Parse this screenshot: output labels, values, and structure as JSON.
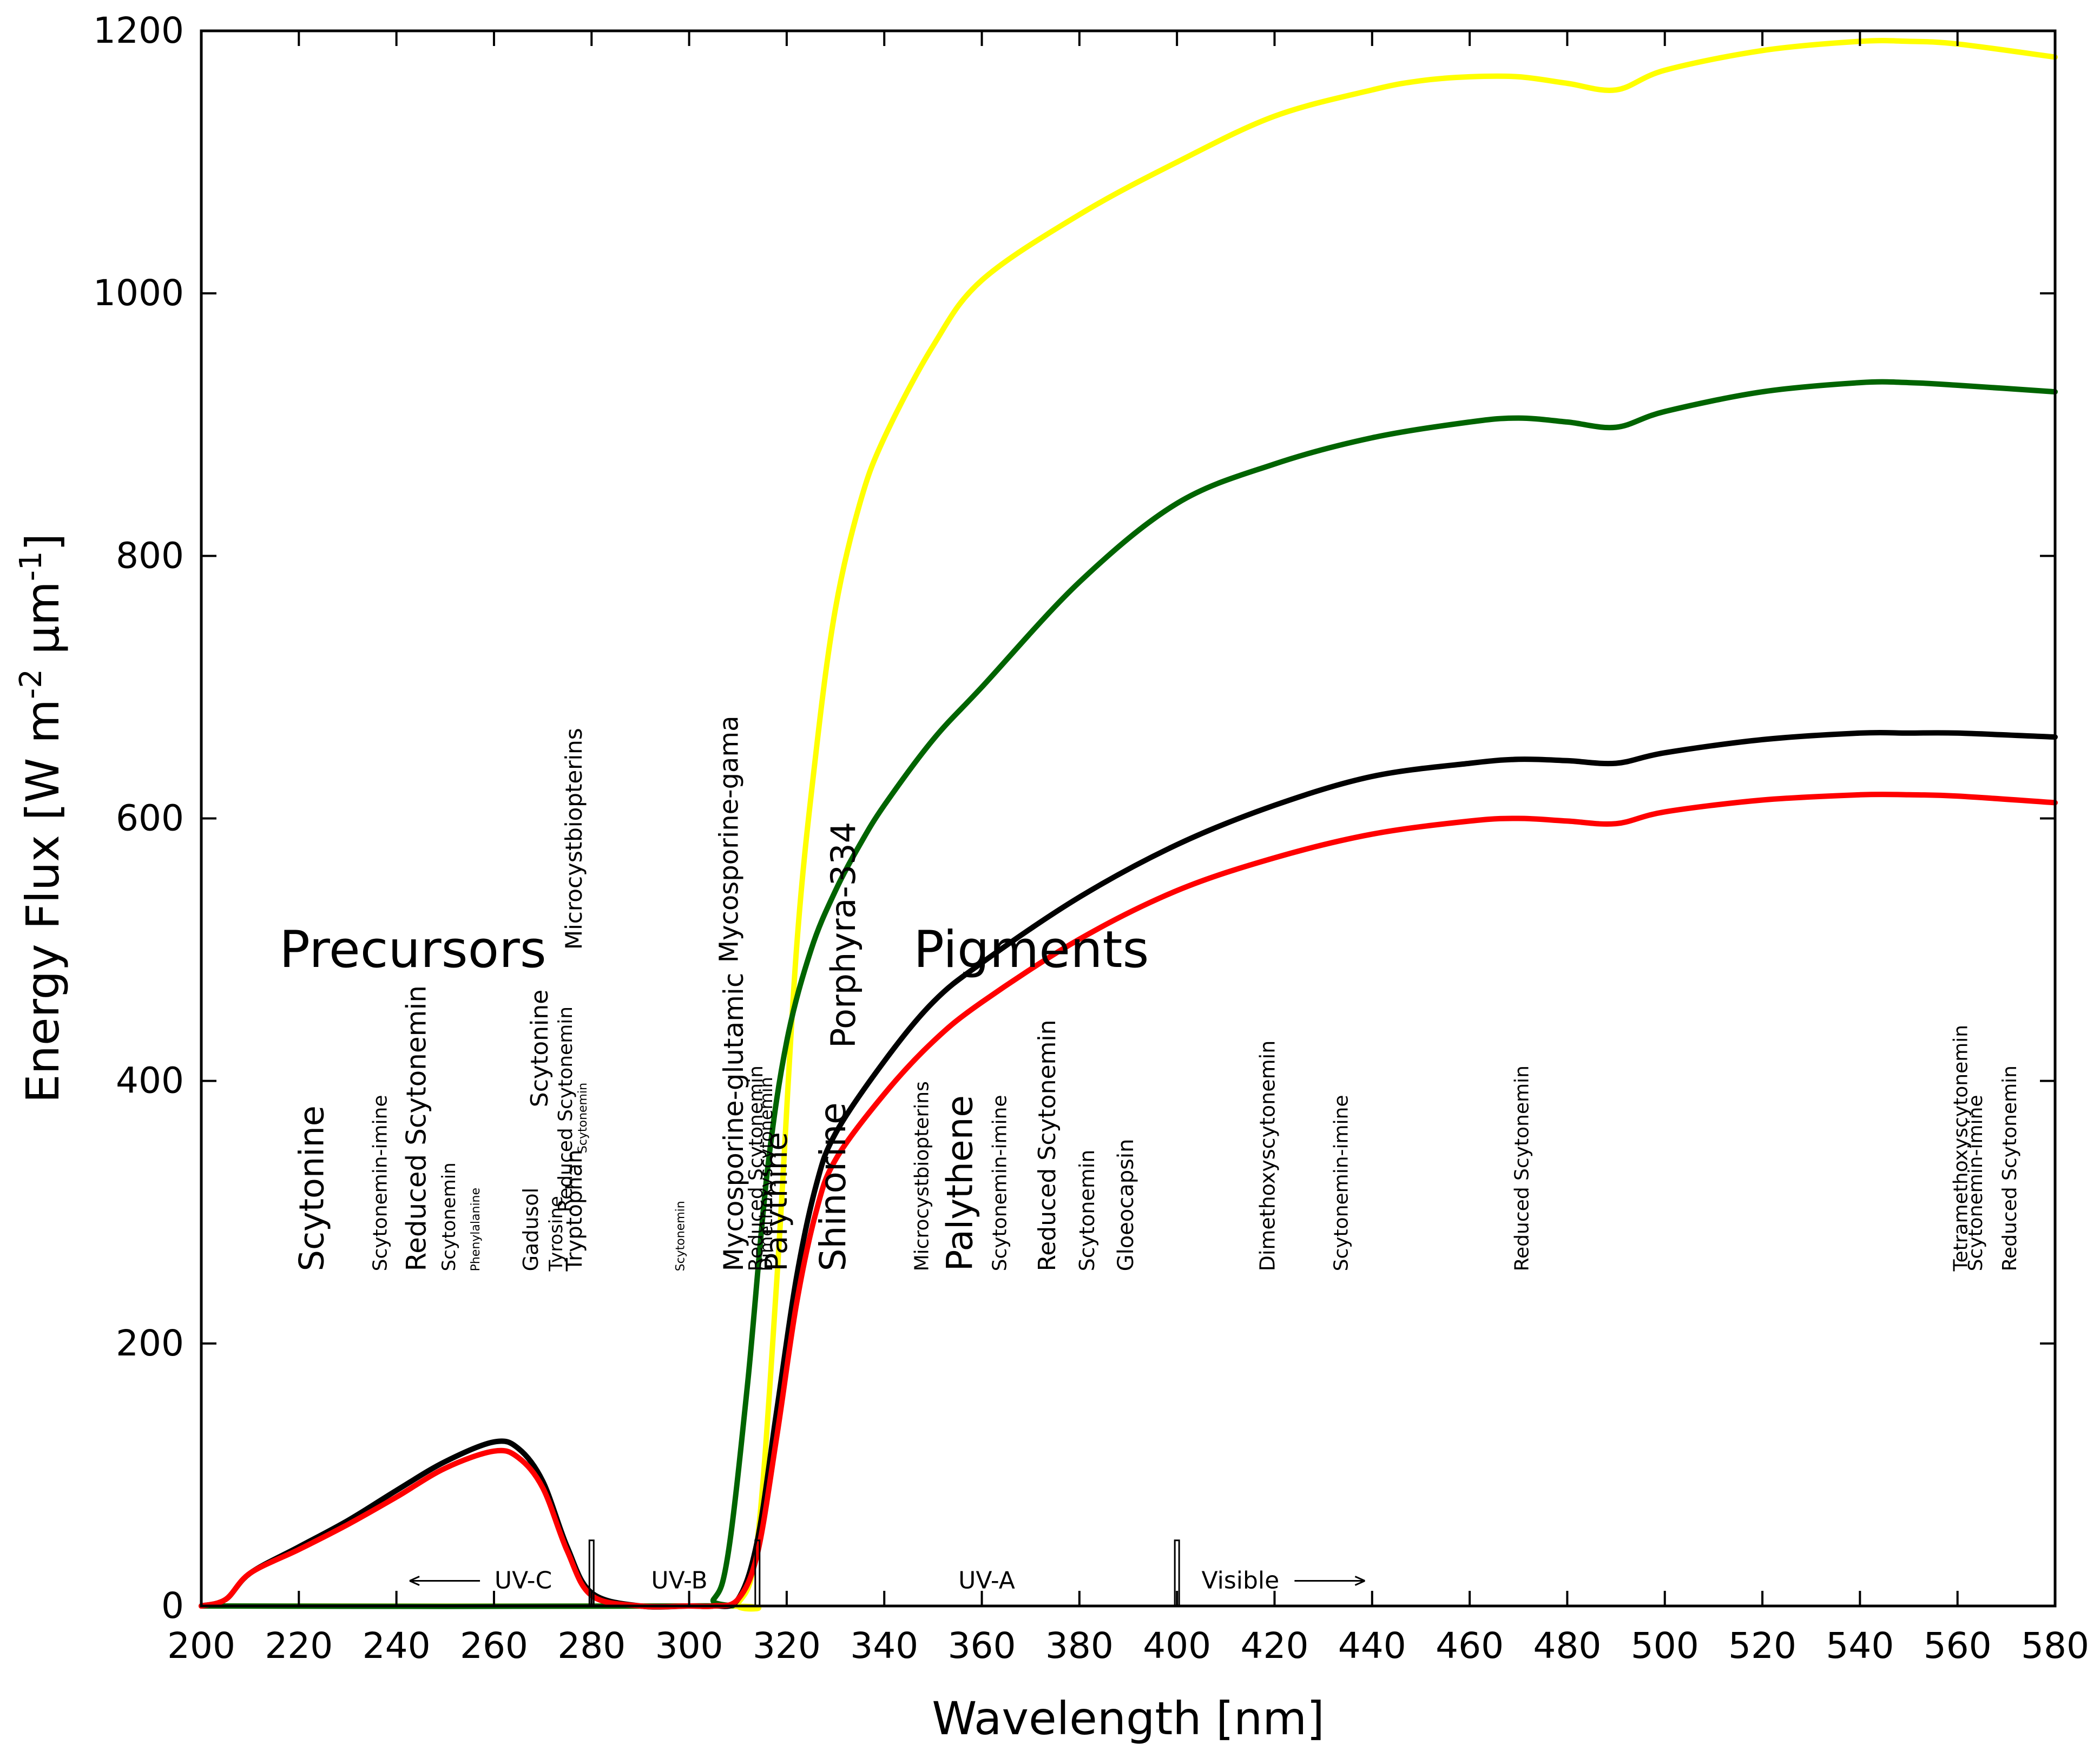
{
  "chart_data": {
    "type": "line",
    "title": "",
    "xlabel": "Wavelength [nm]",
    "ylabel": "Energy Flux [W m-2 μm-1]",
    "ylabel_parts": {
      "main": "Energy Flux [W m",
      "sup1": "-2",
      "mid": " μm",
      "sup2": "-1",
      "end": "]"
    },
    "xlim": [
      200,
      580
    ],
    "ylim": [
      0,
      1200
    ],
    "xticks": [
      200,
      220,
      240,
      260,
      280,
      300,
      320,
      340,
      360,
      380,
      400,
      420,
      440,
      460,
      480,
      500,
      520,
      540,
      560,
      580
    ],
    "yticks": [
      0,
      200,
      400,
      600,
      800,
      1000,
      1200
    ],
    "series": [
      {
        "name": "yellow",
        "color": "#ffff00",
        "x": [
          200,
          305,
          310,
          314,
          318,
          322,
          326,
          330,
          335,
          340,
          350,
          360,
          380,
          400,
          420,
          440,
          450,
          460,
          470,
          480,
          490,
          500,
          520,
          540,
          550,
          560,
          580
        ],
        "y": [
          0,
          0,
          2,
          50,
          250,
          500,
          650,
          760,
          840,
          890,
          960,
          1010,
          1060,
          1100,
          1135,
          1155,
          1162,
          1165,
          1165,
          1160,
          1155,
          1170,
          1185,
          1192,
          1192,
          1190,
          1180
        ]
      },
      {
        "name": "green",
        "color": "#006400",
        "x": [
          200,
          300,
          305,
          308,
          312,
          316,
          320,
          325,
          330,
          335,
          340,
          350,
          360,
          380,
          400,
          420,
          440,
          460,
          470,
          480,
          490,
          500,
          520,
          540,
          550,
          560,
          580
        ],
        "y": [
          0,
          0,
          5,
          40,
          170,
          330,
          430,
          500,
          545,
          580,
          610,
          660,
          700,
          780,
          840,
          870,
          890,
          902,
          905,
          902,
          898,
          910,
          925,
          932,
          932,
          930,
          925
        ]
      },
      {
        "name": "black",
        "color": "#000000",
        "x": [
          200,
          205,
          210,
          220,
          230,
          240,
          250,
          260,
          265,
          270,
          275,
          280,
          290,
          300,
          305,
          310,
          314,
          318,
          322,
          326,
          330,
          340,
          350,
          360,
          380,
          400,
          420,
          440,
          460,
          470,
          480,
          490,
          500,
          520,
          540,
          550,
          560,
          580
        ],
        "y": [
          0,
          5,
          25,
          45,
          65,
          88,
          110,
          125,
          120,
          95,
          45,
          10,
          0,
          0,
          0,
          5,
          50,
          150,
          250,
          320,
          360,
          415,
          460,
          490,
          540,
          580,
          610,
          632,
          642,
          645,
          644,
          642,
          650,
          660,
          665,
          665,
          665,
          662
        ]
      },
      {
        "name": "red",
        "color": "#ff0000",
        "x": [
          200,
          205,
          210,
          220,
          230,
          240,
          250,
          260,
          265,
          270,
          275,
          280,
          290,
          300,
          305,
          310,
          314,
          318,
          322,
          326,
          330,
          340,
          350,
          360,
          380,
          400,
          420,
          440,
          460,
          470,
          480,
          490,
          500,
          520,
          540,
          550,
          560,
          580
        ],
        "y": [
          0,
          5,
          25,
          43,
          62,
          83,
          105,
          118,
          113,
          90,
          42,
          8,
          0,
          0,
          0,
          5,
          40,
          130,
          230,
          300,
          340,
          390,
          430,
          460,
          508,
          545,
          570,
          588,
          598,
          600,
          598,
          596,
          605,
          614,
          618,
          618,
          617,
          612
        ]
      }
    ],
    "group_labels": [
      {
        "text": "Precursors",
        "x": 216,
        "y": 500
      },
      {
        "text": "Pigments",
        "x": 346,
        "y": 500
      }
    ],
    "band_labels": [
      {
        "text": "UV-C",
        "x": 266,
        "arrow": "left"
      },
      {
        "text": "UV-B",
        "x": 298,
        "arrow": "none"
      },
      {
        "text": "UV-A",
        "x": 361,
        "arrow": "none"
      },
      {
        "text": "Visible",
        "x": 413,
        "arrow": "right"
      }
    ],
    "band_markers": [
      280,
      314,
      400
    ],
    "annotations": [
      {
        "text": "Scytonine",
        "x": 225,
        "y": 255,
        "size": 62
      },
      {
        "text": "Scytonemin-imine",
        "x": 238,
        "y": 255,
        "size": 36
      },
      {
        "text": "Reduced Scytonemin",
        "x": 246,
        "y": 255,
        "size": 50
      },
      {
        "text": "Scytonemin",
        "x": 252,
        "y": 255,
        "size": 34
      },
      {
        "text": "Phenylalanine",
        "x": 257,
        "y": 255,
        "size": 22
      },
      {
        "text": "Gadusol",
        "x": 269,
        "y": 255,
        "size": 38
      },
      {
        "text": "Tyrosine",
        "x": 274,
        "y": 255,
        "size": 34
      },
      {
        "text": "Tryptophan",
        "x": 278,
        "y": 255,
        "size": 40
      },
      {
        "text": "Scytonine",
        "x": 271,
        "y": 380,
        "size": 44
      },
      {
        "text": "Reduced Scytonemin",
        "x": 276,
        "y": 300,
        "size": 36
      },
      {
        "text": "Scytonemin",
        "x": 279,
        "y": 345,
        "size": 22
      },
      {
        "text": "Microcystbiopterins",
        "x": 278,
        "y": 500,
        "size": 42
      },
      {
        "text": "Scytonemin",
        "x": 299,
        "y": 255,
        "size": 22
      },
      {
        "text": "Mycosporine-gama",
        "x": 310,
        "y": 490,
        "size": 48
      },
      {
        "text": "Mycosporine-glutamic",
        "x": 311,
        "y": 255,
        "size": 50
      },
      {
        "text": "Reduced Scytonemin",
        "x": 315,
        "y": 255,
        "size": 36
      },
      {
        "text": "Dimethoxyscytonemin",
        "x": 317,
        "y": 255,
        "size": 32
      },
      {
        "text": "Palythine",
        "x": 320,
        "y": 255,
        "size": 56
      },
      {
        "text": "Shinorine",
        "x": 332,
        "y": 255,
        "size": 66
      },
      {
        "text": "Porphyra-334",
        "x": 334,
        "y": 425,
        "size": 62
      },
      {
        "text": "Microcystbiopterins",
        "x": 349,
        "y": 255,
        "size": 36
      },
      {
        "text": "Palythene",
        "x": 358,
        "y": 255,
        "size": 66
      },
      {
        "text": "Scytonemin-imine",
        "x": 365,
        "y": 255,
        "size": 36
      },
      {
        "text": "Reduced Scytonemin",
        "x": 375,
        "y": 255,
        "size": 44
      },
      {
        "text": "Scytonemin",
        "x": 383,
        "y": 255,
        "size": 38
      },
      {
        "text": "Gloeocapsin",
        "x": 391,
        "y": 255,
        "size": 40
      },
      {
        "text": "Dimethoxyscytonemin",
        "x": 420,
        "y": 255,
        "size": 38
      },
      {
        "text": "Scytonemin-imine",
        "x": 435,
        "y": 255,
        "size": 36
      },
      {
        "text": "Reduced Scytonemin",
        "x": 472,
        "y": 255,
        "size": 36
      },
      {
        "text": "Tetramethoxyscytonemin",
        "x": 562,
        "y": 255,
        "size": 36
      },
      {
        "text": "Scytonemin-imine",
        "x": 565,
        "y": 255,
        "size": 36
      },
      {
        "text": "Reduced Scytonemin",
        "x": 572,
        "y": 255,
        "size": 36
      }
    ]
  }
}
